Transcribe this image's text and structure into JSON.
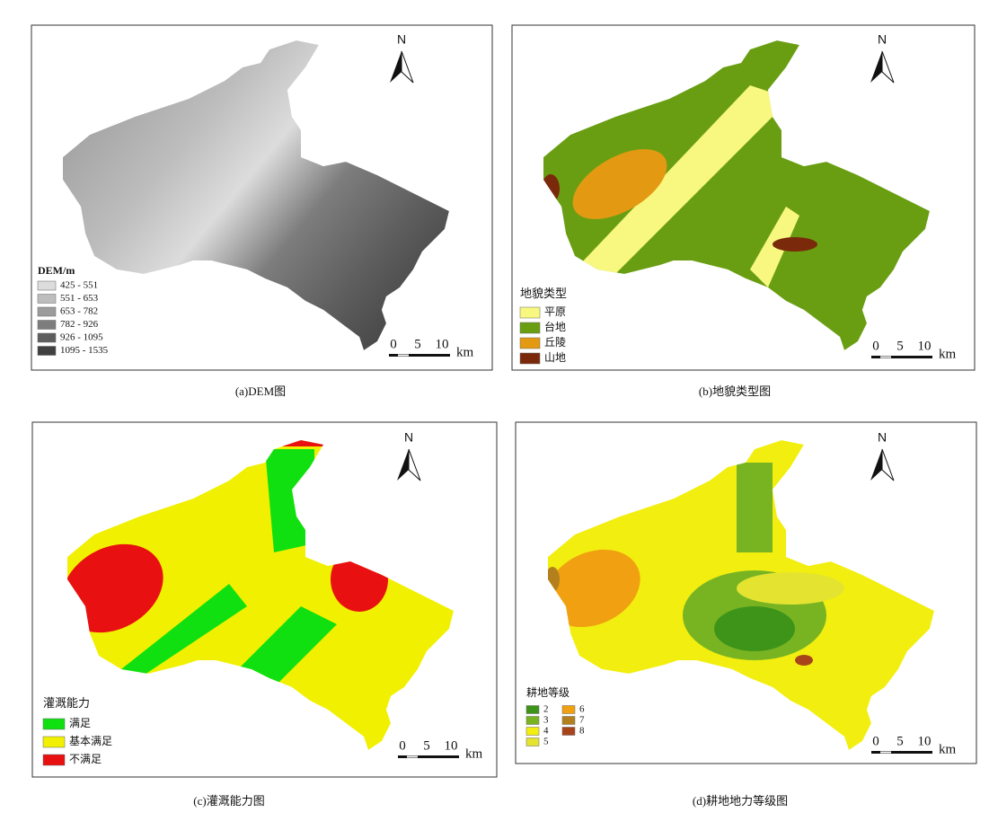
{
  "panels": [
    {
      "caption": "(a)DEM图",
      "legend": {
        "title": "DEM/m",
        "items": [
          {
            "label": "425 - 551",
            "color": "#dcdcdc"
          },
          {
            "label": "551 - 653",
            "color": "#bdbdbd"
          },
          {
            "label": "653 - 782",
            "color": "#9c9c9c"
          },
          {
            "label": "782 - 926",
            "color": "#7d7d7d"
          },
          {
            "label": "926 - 1095",
            "color": "#5e5e5e"
          },
          {
            "label": "1095 - 1535",
            "color": "#404040"
          }
        ]
      },
      "north": "N",
      "scale": {
        "ticks": [
          "0",
          "5",
          "10"
        ],
        "unit": "km"
      }
    },
    {
      "caption": "(b)地貌类型图",
      "legend": {
        "title": "地貌类型",
        "items": [
          {
            "label": "平原",
            "color": "#f8f880"
          },
          {
            "label": "台地",
            "color": "#6a9e12"
          },
          {
            "label": "丘陵",
            "color": "#e39a12"
          },
          {
            "label": "山地",
            "color": "#7a2a0a"
          }
        ]
      },
      "north": "N",
      "scale": {
        "ticks": [
          "0",
          "5",
          "10"
        ],
        "unit": "km"
      }
    },
    {
      "caption": "(c)灌溉能力图",
      "legend": {
        "title": "灌溉能力",
        "items": [
          {
            "label": "满足",
            "color": "#10e010"
          },
          {
            "label": "基本满足",
            "color": "#f0f000"
          },
          {
            "label": "不满足",
            "color": "#e81010"
          }
        ]
      },
      "north": "N",
      "scale": {
        "ticks": [
          "0",
          "5",
          "10"
        ],
        "unit": "km"
      }
    },
    {
      "caption": "(d)耕地地力等级图",
      "legend": {
        "title": "耕地等级",
        "items": [
          {
            "label": "2",
            "color": "#3e9418"
          },
          {
            "label": "3",
            "color": "#78b422"
          },
          {
            "label": "4",
            "color": "#f2ee10"
          },
          {
            "label": "5",
            "color": "#e4e430"
          },
          {
            "label": "6",
            "color": "#f0a010"
          },
          {
            "label": "7",
            "color": "#b4801e"
          },
          {
            "label": "8",
            "color": "#a8441a"
          }
        ]
      },
      "north": "N",
      "scale": {
        "ticks": [
          "0",
          "5",
          "10"
        ],
        "unit": "km"
      }
    }
  ]
}
